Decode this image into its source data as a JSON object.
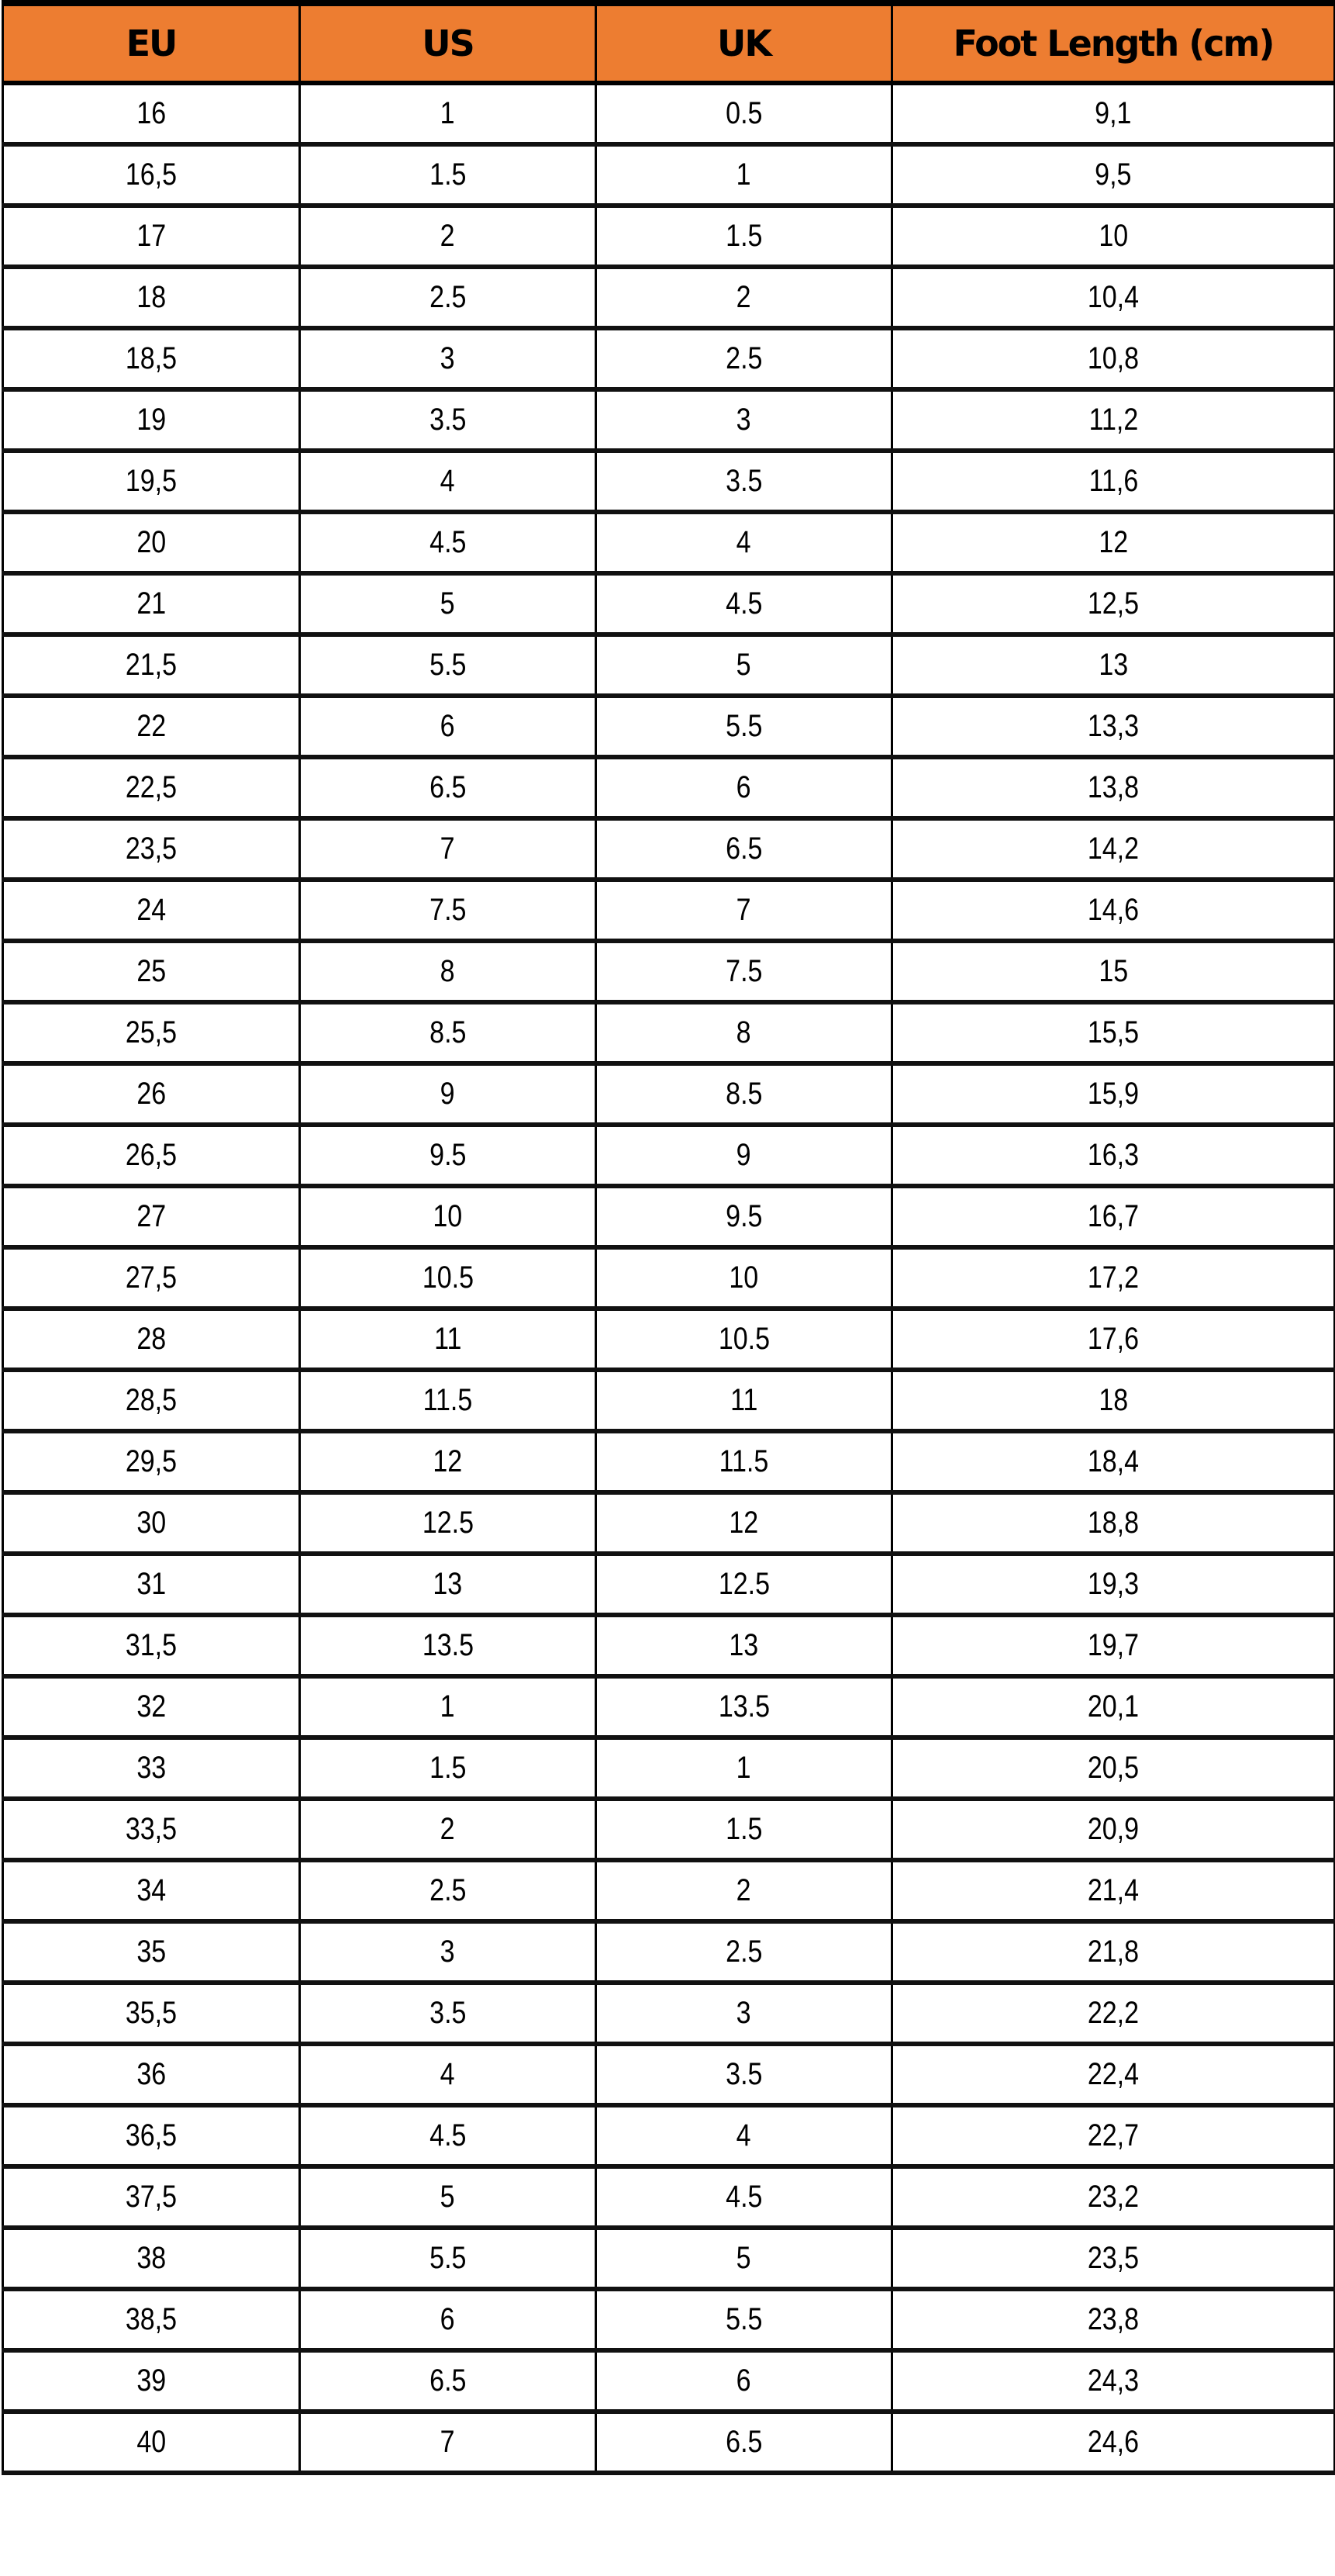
{
  "header_color": "#ed7d31",
  "columns": [
    "EU",
    "US",
    "UK",
    "Foot Length (cm)"
  ],
  "rows": [
    [
      "16",
      "1",
      "0.5",
      "9,1"
    ],
    [
      "16,5",
      "1.5",
      "1",
      "9,5"
    ],
    [
      "17",
      "2",
      "1.5",
      "10"
    ],
    [
      "18",
      "2.5",
      "2",
      "10,4"
    ],
    [
      "18,5",
      "3",
      "2.5",
      "10,8"
    ],
    [
      "19",
      "3.5",
      "3",
      "11,2"
    ],
    [
      "19,5",
      "4",
      "3.5",
      "11,6"
    ],
    [
      "20",
      "4.5",
      "4",
      "12"
    ],
    [
      "21",
      "5",
      "4.5",
      "12,5"
    ],
    [
      "21,5",
      "5.5",
      "5",
      "13"
    ],
    [
      "22",
      "6",
      "5.5",
      "13,3"
    ],
    [
      "22,5",
      "6.5",
      "6",
      "13,8"
    ],
    [
      "23,5",
      "7",
      "6.5",
      "14,2"
    ],
    [
      "24",
      "7.5",
      "7",
      "14,6"
    ],
    [
      "25",
      "8",
      "7.5",
      "15"
    ],
    [
      "25,5",
      "8.5",
      "8",
      "15,5"
    ],
    [
      "26",
      "9",
      "8.5",
      "15,9"
    ],
    [
      "26,5",
      "9.5",
      "9",
      "16,3"
    ],
    [
      "27",
      "10",
      "9.5",
      "16,7"
    ],
    [
      "27,5",
      "10.5",
      "10",
      "17,2"
    ],
    [
      "28",
      "11",
      "10.5",
      "17,6"
    ],
    [
      "28,5",
      "11.5",
      "11",
      "18"
    ],
    [
      "29,5",
      "12",
      "11.5",
      "18,4"
    ],
    [
      "30",
      "12.5",
      "12",
      "18,8"
    ],
    [
      "31",
      "13",
      "12.5",
      "19,3"
    ],
    [
      "31,5",
      "13.5",
      "13",
      "19,7"
    ],
    [
      "32",
      "1",
      "13.5",
      "20,1"
    ],
    [
      "33",
      "1.5",
      "1",
      "20,5"
    ],
    [
      "33,5",
      "2",
      "1.5",
      "20,9"
    ],
    [
      "34",
      "2.5",
      "2",
      "21,4"
    ],
    [
      "35",
      "3",
      "2.5",
      "21,8"
    ],
    [
      "35,5",
      "3.5",
      "3",
      "22,2"
    ],
    [
      "36",
      "4",
      "3.5",
      "22,4"
    ],
    [
      "36,5",
      "4.5",
      "4",
      "22,7"
    ],
    [
      "37,5",
      "5",
      "4.5",
      "23,2"
    ],
    [
      "38",
      "5.5",
      "5",
      "23,5"
    ],
    [
      "38,5",
      "6",
      "5.5",
      "23,8"
    ],
    [
      "39",
      "6.5",
      "6",
      "24,3"
    ],
    [
      "40",
      "7",
      "6.5",
      "24,6"
    ]
  ]
}
